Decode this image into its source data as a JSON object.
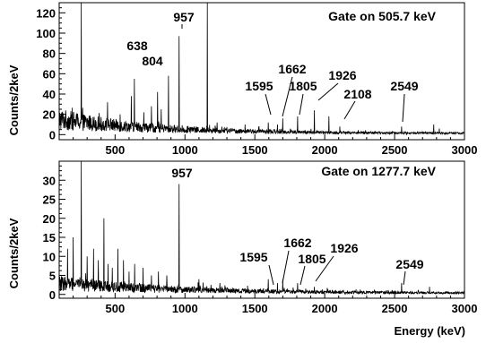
{
  "chart_data": [
    {
      "type": "line",
      "title": "Gate on  505.7 keV",
      "xlabel": "",
      "ylabel": "Counts/2keV",
      "xlim": [
        100,
        3000
      ],
      "ylim": [
        -5,
        130
      ],
      "x_ticks": [
        500,
        1000,
        1500,
        2000,
        2500,
        3000
      ],
      "y_ticks": [
        0,
        20,
        40,
        60,
        80,
        100,
        120
      ],
      "x_tick_labels": [
        "500",
        "1000",
        "1500",
        "2000",
        "2500",
        "3000"
      ],
      "y_tick_labels": [
        "0",
        "20",
        "40",
        "60",
        "80",
        "100",
        "120"
      ],
      "grid": false,
      "series": [
        {
          "peaks": [
            {
              "x": 257,
              "y": 130
            },
            {
              "x": 445,
              "y": 32
            },
            {
              "x": 535,
              "y": 20
            },
            {
              "x": 615,
              "y": 38
            },
            {
              "x": 638,
              "y": 55
            },
            {
              "x": 705,
              "y": 22
            },
            {
              "x": 760,
              "y": 28
            },
            {
              "x": 804,
              "y": 42
            },
            {
              "x": 830,
              "y": 25
            },
            {
              "x": 882,
              "y": 58
            },
            {
              "x": 957,
              "y": 97
            },
            {
              "x": 1160,
              "y": 130
            },
            {
              "x": 1230,
              "y": 12
            },
            {
              "x": 1430,
              "y": 10
            },
            {
              "x": 1595,
              "y": 12
            },
            {
              "x": 1662,
              "y": 10
            },
            {
              "x": 1700,
              "y": 16
            },
            {
              "x": 1805,
              "y": 18
            },
            {
              "x": 1926,
              "y": 24
            },
            {
              "x": 2030,
              "y": 18
            },
            {
              "x": 2108,
              "y": 8
            },
            {
              "x": 2549,
              "y": 8
            },
            {
              "x": 2780,
              "y": 10
            },
            {
              "x": 2820,
              "y": 6
            }
          ]
        }
      ],
      "annotations": [
        {
          "text": "957",
          "x": 957
        },
        {
          "text": "638",
          "x": 638
        },
        {
          "text": "804",
          "x": 804
        },
        {
          "text": "1595",
          "x": 1595
        },
        {
          "text": "1662",
          "x": 1662
        },
        {
          "text": "1805",
          "x": 1805
        },
        {
          "text": "1926",
          "x": 1926
        },
        {
          "text": "2108",
          "x": 2108
        },
        {
          "text": "2549",
          "x": 2549
        }
      ]
    },
    {
      "type": "line",
      "title": "Gate on 1277.7 keV",
      "xlabel": "Energy (keV)",
      "ylabel": "Counts/2keV",
      "xlim": [
        100,
        3000
      ],
      "ylim": [
        -1,
        35
      ],
      "x_ticks": [
        500,
        1000,
        1500,
        2000,
        2500,
        3000
      ],
      "y_ticks": [
        0,
        5,
        10,
        15,
        20,
        25,
        30
      ],
      "x_tick_labels": [
        "500",
        "1000",
        "1500",
        "2000",
        "2500",
        "3000"
      ],
      "y_tick_labels": [
        "0",
        "5",
        "10",
        "15",
        "20",
        "25",
        "30"
      ],
      "grid": false,
      "series": [
        {
          "peaks": [
            {
              "x": 160,
              "y": 12
            },
            {
              "x": 200,
              "y": 15
            },
            {
              "x": 257,
              "y": 35
            },
            {
              "x": 300,
              "y": 10
            },
            {
              "x": 345,
              "y": 12
            },
            {
              "x": 380,
              "y": 9
            },
            {
              "x": 420,
              "y": 20
            },
            {
              "x": 450,
              "y": 8
            },
            {
              "x": 480,
              "y": 7
            },
            {
              "x": 520,
              "y": 12
            },
            {
              "x": 560,
              "y": 9
            },
            {
              "x": 600,
              "y": 6
            },
            {
              "x": 640,
              "y": 8
            },
            {
              "x": 700,
              "y": 7
            },
            {
              "x": 760,
              "y": 5
            },
            {
              "x": 810,
              "y": 6
            },
            {
              "x": 870,
              "y": 5
            },
            {
              "x": 957,
              "y": 29
            },
            {
              "x": 1100,
              "y": 4
            },
            {
              "x": 1250,
              "y": 3
            },
            {
              "x": 1595,
              "y": 4
            },
            {
              "x": 1662,
              "y": 3
            },
            {
              "x": 1700,
              "y": 4
            },
            {
              "x": 1805,
              "y": 3
            },
            {
              "x": 1926,
              "y": 2
            },
            {
              "x": 2549,
              "y": 3
            },
            {
              "x": 2750,
              "y": 2
            }
          ]
        }
      ],
      "annotations": [
        {
          "text": "957",
          "x": 957
        },
        {
          "text": "1595",
          "x": 1595
        },
        {
          "text": "1662",
          "x": 1662
        },
        {
          "text": "1805",
          "x": 1805
        },
        {
          "text": "1926",
          "x": 1926
        },
        {
          "text": "2549",
          "x": 2549
        }
      ]
    }
  ]
}
